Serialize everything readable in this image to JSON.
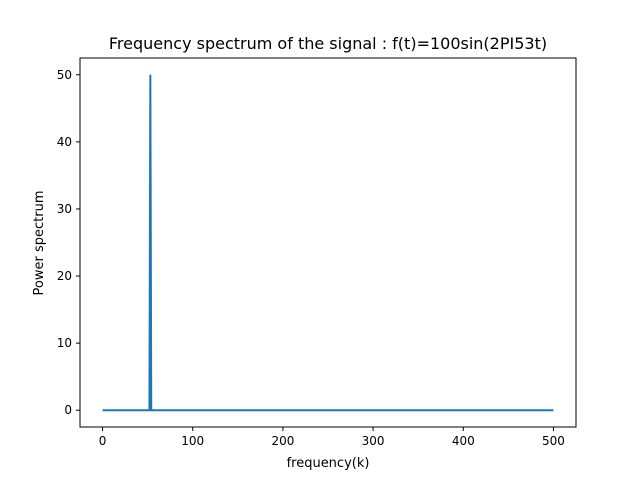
{
  "chart_data": {
    "type": "line",
    "title": "Frequency spectrum of the signal : f(t)=100sin(2PI53t)",
    "xlabel": "frequency(k)",
    "ylabel": "Power spectrum",
    "xlim": [
      -25,
      525
    ],
    "ylim": [
      -2.5,
      52.5
    ],
    "xticks": [
      0,
      100,
      200,
      300,
      400,
      500
    ],
    "yticks": [
      0,
      10,
      20,
      30,
      40,
      50
    ],
    "grid": false,
    "series": [
      {
        "color": "#1f77b4",
        "x": [
          0,
          52,
          53,
          54,
          500
        ],
        "y": [
          0,
          0,
          50,
          0,
          0
        ]
      }
    ]
  }
}
